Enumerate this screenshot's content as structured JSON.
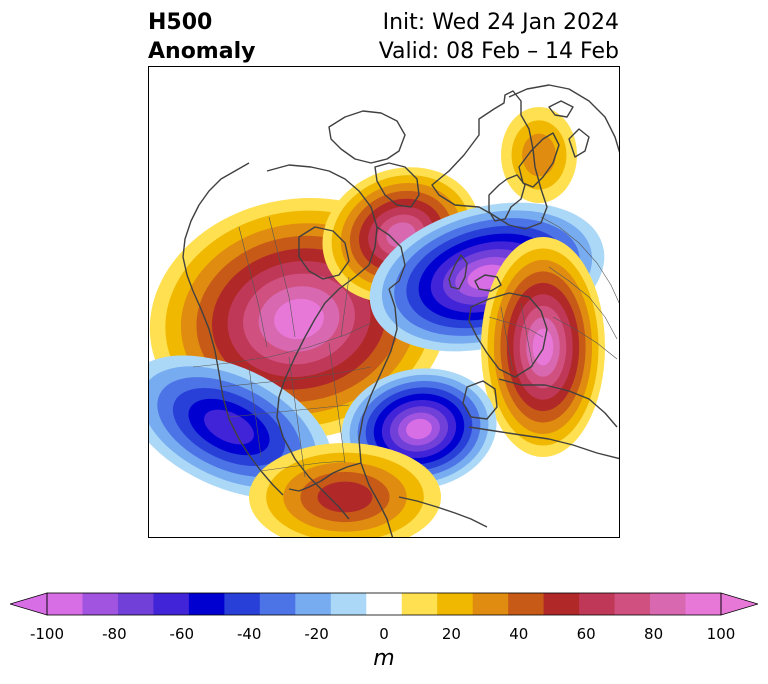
{
  "title": {
    "left_line1": "H500",
    "left_line2": "Anomaly",
    "right_line1": "Init: Wed 24 Jan 2024",
    "right_line2": "Valid: 08 Feb – 14 Feb"
  },
  "colorbar": {
    "unit": "m",
    "ticks": [
      "-100",
      "-80",
      "-60",
      "-40",
      "-20",
      "0",
      "20",
      "40",
      "60",
      "80",
      "100"
    ],
    "levels": [
      -100,
      -90,
      -80,
      -70,
      -60,
      -50,
      -40,
      -30,
      -20,
      -10,
      10,
      20,
      30,
      40,
      50,
      60,
      70,
      80,
      90,
      100
    ],
    "colors": [
      "#d86ee6",
      "#a054e0",
      "#7040d8",
      "#4224d8",
      "#0000d0",
      "#2840d8",
      "#4c74e6",
      "#78acf0",
      "#acd8f8",
      "#ffffff",
      "#ffe050",
      "#f0b800",
      "#e08c10",
      "#c85a18",
      "#b02828",
      "#c03858",
      "#d05080",
      "#d868b0",
      "#e878d8"
    ],
    "under_color": "#d86ee6",
    "over_color": "#e878d8"
  },
  "map": {
    "region": "North Atlantic / North America polar stereographic",
    "anomaly_centers": [
      {
        "name": "north-pacific-alaska-ridge",
        "sign": "positive",
        "peak_m": 100
      },
      {
        "name": "greenland-arctic-ridge",
        "sign": "positive",
        "peak_m": 80
      },
      {
        "name": "north-atlantic-trough",
        "sign": "negative",
        "peak_m": -100
      },
      {
        "name": "western-europe-ridge",
        "sign": "positive",
        "peak_m": 100
      },
      {
        "name": "eastern-pacific-trough",
        "sign": "negative",
        "peak_m": -60
      },
      {
        "name": "siberia-ridge",
        "sign": "positive",
        "peak_m": 30
      },
      {
        "name": "southwest-atlantic-trough",
        "sign": "negative",
        "peak_m": -100
      },
      {
        "name": "north-africa-ridge",
        "sign": "positive",
        "peak_m": 50
      }
    ]
  }
}
